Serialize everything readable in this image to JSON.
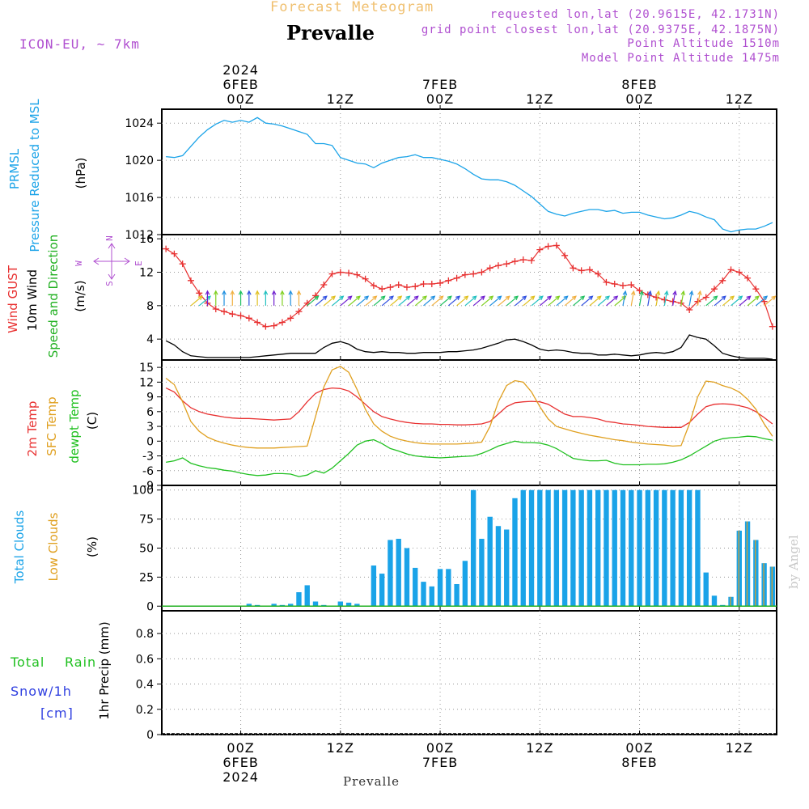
{
  "header": {
    "product": "Forecast Meteogram",
    "location": "Prevalle",
    "model": "ICON-EU, ~ 7km",
    "requested": "requested lon,lat (20.9615E, 42.1731N)",
    "gridpoint": "grid point closest lon,lat (20.9375E, 42.1875N)",
    "point_alt": "Point Altitude 1510m",
    "model_alt": "Model Point Altitude 1475m"
  },
  "footer": {
    "location": "Prevalle",
    "watermark": "by Angel"
  },
  "time_axis": {
    "top_labels": [
      {
        "hour": 0,
        "lines": [
          "2024",
          "6FEB",
          "00Z"
        ]
      },
      {
        "hour": 12,
        "lines": [
          "12Z"
        ]
      },
      {
        "hour": 24,
        "lines": [
          "7FEB",
          "00Z"
        ]
      },
      {
        "hour": 36,
        "lines": [
          "12Z"
        ]
      },
      {
        "hour": 48,
        "lines": [
          "8FEB",
          "00Z"
        ]
      },
      {
        "hour": 60,
        "lines": [
          "12Z"
        ]
      }
    ],
    "bottom_labels": [
      {
        "hour": 0,
        "lines": [
          "00Z",
          "6FEB",
          "2024"
        ]
      },
      {
        "hour": 12,
        "lines": [
          "12Z"
        ]
      },
      {
        "hour": 24,
        "lines": [
          "00Z",
          "7FEB"
        ]
      },
      {
        "hour": 36,
        "lines": [
          "12Z"
        ]
      },
      {
        "hour": 48,
        "lines": [
          "00Z",
          "8FEB"
        ]
      },
      {
        "hour": 60,
        "lines": [
          "12Z"
        ]
      }
    ]
  },
  "panels": {
    "pressure": {
      "labels": [
        "PRMSL",
        "Pressure Reduced to MSL",
        "(hPa)"
      ],
      "color": "#1aa3e8"
    },
    "wind": {
      "labels": [
        "Wind GUST",
        "10m Wind",
        "Speed and Direction",
        "(m/s)"
      ],
      "colors": [
        "#e83030",
        "#000000",
        "#20b020"
      ],
      "compass": {
        "north": "N",
        "south": "S",
        "east": "E",
        "west": "W"
      }
    },
    "temp": {
      "labels": [
        "2m Temp",
        "SFC Temp",
        "dewpt Temp",
        "(C)"
      ],
      "colors": [
        "#e83030",
        "#e0a020",
        "#20c020"
      ]
    },
    "clouds": {
      "labels": [
        "Total Clouds",
        "Low Clouds",
        "(%)"
      ],
      "colors": [
        "#1aa3e8",
        "#e0a020"
      ]
    },
    "precip": {
      "labels": [
        "1hr Precip (mm)"
      ],
      "side_labels": {
        "total": "Total",
        "rain": "Rain",
        "snow": "Snow/1h",
        "cm": "[cm]"
      },
      "colors": [
        "#20c020",
        "#20c020",
        "#3040e0",
        "#3040e0"
      ]
    }
  },
  "chart_data": [
    {
      "type": "line",
      "title": "PRMSL",
      "ylabel": "(hPa)",
      "ylim": [
        1012,
        1025.5
      ],
      "yticks": [
        1012,
        1016,
        1020,
        1024
      ],
      "x": [
        -9,
        -8,
        -7,
        -6,
        -5,
        -4,
        -3,
        -2,
        -1,
        0,
        1,
        2,
        3,
        4,
        5,
        6,
        7,
        8,
        9,
        10,
        11,
        12,
        13,
        14,
        15,
        16,
        17,
        18,
        19,
        20,
        21,
        22,
        23,
        24,
        25,
        26,
        27,
        28,
        29,
        30,
        31,
        32,
        33,
        34,
        35,
        36,
        37,
        38,
        39,
        40,
        41,
        42,
        43,
        44,
        45,
        46,
        47,
        48,
        49,
        50,
        51,
        52,
        53,
        54,
        55,
        56,
        57,
        58,
        59,
        60,
        61,
        62,
        63,
        64
      ],
      "series": [
        {
          "values": [
            1020.4,
            1020.3,
            1020.5,
            1021.5,
            1022.5,
            1023.3,
            1023.9,
            1024.3,
            1024.1,
            1024.3,
            1024.1,
            1024.6,
            1024.0,
            1023.9,
            1023.7,
            1023.4,
            1023.1,
            1022.8,
            1021.8,
            1021.8,
            1021.6,
            1020.3,
            1020.0,
            1019.7,
            1019.6,
            1019.2,
            1019.7,
            1020.0,
            1020.3,
            1020.4,
            1020.6,
            1020.3,
            1020.3,
            1020.1,
            1019.9,
            1019.6,
            1019.1,
            1018.5,
            1018.0,
            1017.9,
            1017.9,
            1017.7,
            1017.3,
            1016.7,
            1016.1,
            1015.3,
            1014.5,
            1014.2,
            1014.0,
            1014.3,
            1014.5,
            1014.7,
            1014.7,
            1014.5,
            1014.6,
            1014.3,
            1014.4,
            1014.4,
            1014.1,
            1013.9,
            1013.7,
            1013.8,
            1014.1,
            1014.5,
            1014.3,
            1013.9,
            1013.6,
            1012.6,
            1012.3,
            1012.5,
            1012.6,
            1012.6,
            1012.9,
            1013.3
          ]
        }
      ]
    },
    {
      "type": "line",
      "title": "Wind",
      "ylabel": "(m/s)",
      "ylim": [
        1.5,
        16.5
      ],
      "yticks": [
        4,
        8,
        12,
        16
      ],
      "x": [
        -9,
        -8,
        -7,
        -6,
        -5,
        -4,
        -3,
        -2,
        -1,
        0,
        1,
        2,
        3,
        4,
        5,
        6,
        7,
        8,
        9,
        10,
        11,
        12,
        13,
        14,
        15,
        16,
        17,
        18,
        19,
        20,
        21,
        22,
        23,
        24,
        25,
        26,
        27,
        28,
        29,
        30,
        31,
        32,
        33,
        34,
        35,
        36,
        37,
        38,
        39,
        40,
        41,
        42,
        43,
        44,
        45,
        46,
        47,
        48,
        49,
        50,
        51,
        52,
        53,
        54,
        55,
        56,
        57,
        58,
        59,
        60,
        61,
        62,
        63,
        64
      ],
      "series": [
        {
          "name": "Wind GUST",
          "values": [
            14.8,
            14.2,
            13.0,
            11.0,
            9.5,
            8.3,
            7.6,
            7.3,
            7.0,
            6.8,
            6.5,
            6.0,
            5.5,
            5.6,
            6.0,
            6.5,
            7.3,
            8.3,
            9.2,
            10.5,
            11.8,
            12.0,
            11.9,
            11.7,
            11.2,
            10.4,
            10.0,
            10.2,
            10.5,
            10.2,
            10.3,
            10.6,
            10.6,
            10.7,
            11.0,
            11.3,
            11.7,
            11.8,
            12.0,
            12.5,
            12.8,
            13.0,
            13.3,
            13.5,
            13.4,
            14.7,
            15.1,
            15.2,
            14.0,
            12.5,
            12.2,
            12.3,
            11.8,
            10.8,
            10.6,
            10.4,
            10.5,
            9.8,
            9.3,
            9.0,
            8.7,
            8.5,
            8.3,
            7.5,
            8.5,
            9.0,
            10.0,
            11.0,
            12.3,
            12.0,
            11.3,
            10.0,
            8.5,
            5.5
          ]
        },
        {
          "name": "10m Wind",
          "values": [
            3.8,
            3.3,
            2.5,
            2.0,
            1.9,
            1.8,
            1.8,
            1.8,
            1.8,
            1.8,
            1.8,
            1.9,
            2.0,
            2.1,
            2.2,
            2.3,
            2.3,
            2.3,
            2.3,
            3.0,
            3.5,
            3.7,
            3.4,
            2.8,
            2.5,
            2.4,
            2.5,
            2.4,
            2.4,
            2.3,
            2.3,
            2.4,
            2.4,
            2.4,
            2.5,
            2.5,
            2.6,
            2.7,
            2.9,
            3.2,
            3.5,
            3.9,
            4.0,
            3.7,
            3.3,
            2.8,
            2.6,
            2.7,
            2.6,
            2.4,
            2.3,
            2.3,
            2.1,
            2.1,
            2.2,
            2.1,
            2.0,
            2.1,
            2.3,
            2.4,
            2.3,
            2.5,
            3.0,
            4.5,
            4.2,
            4.0,
            3.2,
            2.3,
            2.0,
            1.8,
            1.7,
            1.7,
            1.7,
            1.6
          ]
        }
      ]
    },
    {
      "type": "line",
      "title": "Temperature",
      "ylabel": "(C)",
      "ylim": [
        -9,
        16.5
      ],
      "yticks": [
        -9,
        -6,
        -3,
        0,
        3,
        6,
        9,
        12,
        15
      ],
      "x": [
        -9,
        -8,
        -7,
        -6,
        -5,
        -4,
        -3,
        -2,
        -1,
        0,
        1,
        2,
        3,
        4,
        5,
        6,
        7,
        8,
        9,
        10,
        11,
        12,
        13,
        14,
        15,
        16,
        17,
        18,
        19,
        20,
        21,
        22,
        23,
        24,
        25,
        26,
        27,
        28,
        29,
        30,
        31,
        32,
        33,
        34,
        35,
        36,
        37,
        38,
        39,
        40,
        41,
        42,
        43,
        44,
        45,
        46,
        47,
        48,
        49,
        50,
        51,
        52,
        53,
        54,
        55,
        56,
        57,
        58,
        59,
        60,
        61,
        62,
        63,
        64
      ],
      "series": [
        {
          "name": "2m Temp",
          "values": [
            10.8,
            10.0,
            8.2,
            6.8,
            6.0,
            5.5,
            5.2,
            4.9,
            4.7,
            4.6,
            4.6,
            4.5,
            4.4,
            4.3,
            4.4,
            4.5,
            6.0,
            8.0,
            9.7,
            10.5,
            10.8,
            10.7,
            10.2,
            9.0,
            7.5,
            6.0,
            5.0,
            4.5,
            4.1,
            3.8,
            3.6,
            3.5,
            3.5,
            3.4,
            3.4,
            3.3,
            3.3,
            3.4,
            3.5,
            4.0,
            5.5,
            7.0,
            7.8,
            8.0,
            8.1,
            8.0,
            7.5,
            6.5,
            5.5,
            5.0,
            5.0,
            4.8,
            4.5,
            4.0,
            3.8,
            3.5,
            3.4,
            3.2,
            3.0,
            2.9,
            2.8,
            2.8,
            2.8,
            3.8,
            5.5,
            7.0,
            7.5,
            7.6,
            7.5,
            7.2,
            6.8,
            6.0,
            4.8,
            3.5
          ]
        },
        {
          "name": "SFC Temp",
          "values": [
            12.8,
            11.5,
            8.0,
            4.0,
            2.0,
            0.8,
            0.1,
            -0.4,
            -0.8,
            -1.1,
            -1.3,
            -1.4,
            -1.4,
            -1.4,
            -1.3,
            -1.2,
            -1.1,
            -1.0,
            5.0,
            11.0,
            14.5,
            15.2,
            14.0,
            10.5,
            6.5,
            3.5,
            2.0,
            1.0,
            0.4,
            0.0,
            -0.3,
            -0.5,
            -0.6,
            -0.6,
            -0.6,
            -0.6,
            -0.5,
            -0.4,
            -0.2,
            3.0,
            8.0,
            11.3,
            12.3,
            12.0,
            10.0,
            7.0,
            4.5,
            3.0,
            2.5,
            2.0,
            1.6,
            1.2,
            0.9,
            0.6,
            0.3,
            0.1,
            -0.2,
            -0.4,
            -0.6,
            -0.7,
            -0.8,
            -1.0,
            -0.9,
            3.5,
            9.0,
            12.2,
            12.0,
            11.3,
            10.8,
            10.0,
            8.5,
            6.5,
            3.5,
            1.0
          ]
        },
        {
          "name": "dewpt Temp",
          "values": [
            -4.3,
            -4.0,
            -3.4,
            -4.5,
            -5.0,
            -5.4,
            -5.6,
            -5.9,
            -6.1,
            -6.5,
            -6.8,
            -7.0,
            -6.9,
            -6.6,
            -6.6,
            -6.7,
            -7.2,
            -6.9,
            -6.0,
            -6.5,
            -5.5,
            -4.0,
            -2.5,
            -0.8,
            0.0,
            0.3,
            -0.5,
            -1.5,
            -2.0,
            -2.6,
            -3.0,
            -3.2,
            -3.3,
            -3.4,
            -3.3,
            -3.2,
            -3.1,
            -3.0,
            -2.5,
            -1.8,
            -1.0,
            -0.5,
            0.0,
            -0.3,
            -0.3,
            -0.4,
            -0.8,
            -1.5,
            -2.5,
            -3.5,
            -3.8,
            -4.0,
            -4.0,
            -3.9,
            -4.5,
            -4.8,
            -4.8,
            -4.8,
            -4.7,
            -4.7,
            -4.6,
            -4.3,
            -3.8,
            -3.0,
            -2.0,
            -1.0,
            0.0,
            0.5,
            0.7,
            0.8,
            1.0,
            0.9,
            0.5,
            0.2
          ]
        }
      ]
    },
    {
      "type": "bar",
      "title": "Clouds",
      "ylabel": "(%)",
      "ylim": [
        -4,
        104
      ],
      "yticks": [
        0,
        25,
        50,
        75,
        100
      ],
      "x": [
        -9,
        -8,
        -7,
        -6,
        -5,
        -4,
        -3,
        -2,
        -1,
        0,
        1,
        2,
        3,
        4,
        5,
        6,
        7,
        8,
        9,
        10,
        11,
        12,
        13,
        14,
        15,
        16,
        17,
        18,
        19,
        20,
        21,
        22,
        23,
        24,
        25,
        26,
        27,
        28,
        29,
        30,
        31,
        32,
        33,
        34,
        35,
        36,
        37,
        38,
        39,
        40,
        41,
        42,
        43,
        44,
        45,
        46,
        47,
        48,
        49,
        50,
        51,
        52,
        53,
        54,
        55,
        56,
        57,
        58,
        59,
        60,
        61,
        62,
        63,
        64
      ],
      "series": [
        {
          "name": "Total Clouds",
          "values": [
            0,
            0,
            0,
            0,
            0,
            0,
            0,
            0,
            0,
            0,
            2,
            1,
            0,
            2,
            1,
            2,
            12,
            18,
            4,
            1,
            0,
            4,
            3,
            2,
            0,
            35,
            28,
            57,
            58,
            50,
            33,
            21,
            17,
            32,
            32,
            19,
            39,
            100,
            58,
            77,
            69,
            66,
            93,
            100,
            100,
            100,
            100,
            100,
            100,
            100,
            100,
            100,
            100,
            100,
            100,
            100,
            100,
            100,
            100,
            100,
            100,
            100,
            100,
            100,
            100,
            29,
            9,
            1,
            8,
            65,
            73,
            57,
            37,
            34
          ]
        },
        {
          "name": "Low Clouds",
          "values": [
            0,
            0,
            0,
            0,
            0,
            0,
            0,
            0,
            0,
            0,
            0,
            0,
            0,
            0,
            0,
            0,
            0,
            0,
            0,
            0,
            0,
            0,
            0,
            0,
            0,
            0,
            0,
            0,
            0,
            0,
            0,
            0,
            0,
            0,
            0,
            0,
            0,
            0,
            0,
            0,
            0,
            0,
            0,
            0,
            0,
            0,
            0,
            0,
            0,
            0,
            0,
            0,
            0,
            0,
            0,
            0,
            0,
            0,
            0,
            0,
            0,
            0,
            0,
            0,
            0,
            0,
            0,
            0,
            8,
            65,
            73,
            57,
            37,
            34
          ]
        }
      ]
    },
    {
      "type": "bar",
      "title": "1hr Precip",
      "ylabel": "1hr Precip (mm)",
      "ylim": [
        0,
        0.98
      ],
      "yticks": [
        0,
        0.2,
        0.4,
        0.6,
        0.8
      ],
      "series": [
        {
          "name": "Total",
          "values": []
        }
      ]
    }
  ]
}
